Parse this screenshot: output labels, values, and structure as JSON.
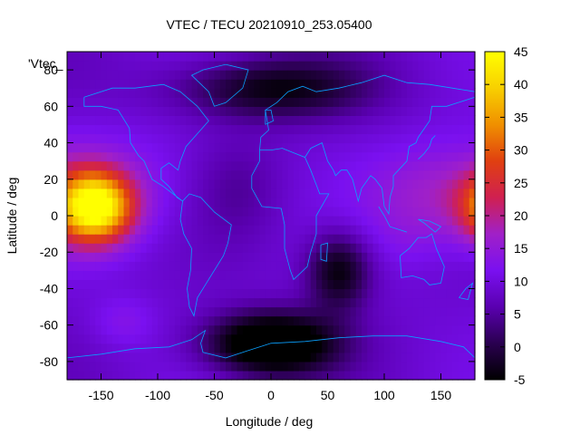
{
  "chart_data": {
    "type": "heatmap",
    "title": "VTEC / TECU 20210910_253.05400",
    "xlabel": "Longitude / deg",
    "ylabel": "Latitude / deg",
    "key_label": "'Vtec_",
    "xlim": [
      -180,
      180
    ],
    "ylim": [
      -90,
      90
    ],
    "x_ticks": [
      -150,
      -100,
      -50,
      0,
      50,
      100,
      150
    ],
    "y_ticks": [
      -80,
      -60,
      -40,
      -20,
      0,
      20,
      40,
      60,
      80
    ],
    "colorbar": {
      "range": [
        -5,
        45
      ],
      "ticks": [
        -5,
        0,
        5,
        10,
        15,
        20,
        25,
        30,
        35,
        40,
        45
      ],
      "palette": [
        "#000000",
        "#2a0050",
        "#5a00b0",
        "#7a10f0",
        "#a020c8",
        "#d02050",
        "#e04010",
        "#f09000",
        "#f8d000",
        "#ffff00"
      ]
    },
    "features": [
      {
        "lon": -155,
        "lat": 5,
        "value": 43,
        "spread_lon": 22,
        "spread_lat": 13
      },
      {
        "lon": -135,
        "lat": 15,
        "value": 14,
        "spread_lon": 60,
        "spread_lat": 22
      },
      {
        "lon": 150,
        "lat": 10,
        "value": 16,
        "spread_lon": 45,
        "spread_lat": 20
      },
      {
        "lon": 120,
        "lat": -15,
        "value": 10,
        "spread_lon": 20,
        "spread_lat": 10
      },
      {
        "lon": -30,
        "lat": 15,
        "value": 5,
        "spread_lon": 30,
        "spread_lat": 20
      },
      {
        "lon": -130,
        "lat": -58,
        "value": 13,
        "spread_lon": 20,
        "spread_lat": 10
      },
      {
        "lon": 0,
        "lat": -70,
        "value": -13,
        "spread_lon": 40,
        "spread_lat": 12
      },
      {
        "lon": 0,
        "lat": 70,
        "value": -4,
        "spread_lon": 60,
        "spread_lat": 12
      },
      {
        "lon": 60,
        "lat": -30,
        "value": -5,
        "spread_lon": 20,
        "spread_lat": 15
      }
    ],
    "background_value": 9
  }
}
